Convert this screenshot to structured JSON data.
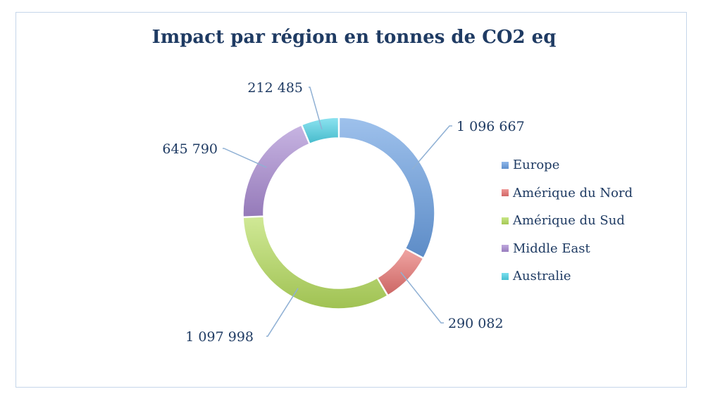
{
  "chart_data": {
    "type": "pie",
    "variant": "doughnut",
    "title": "Impact par région en tonnes de CO2 eq",
    "categories": [
      "Europe",
      "Amérique du Nord",
      "Amérique du Sud",
      "Middle East",
      "Australie"
    ],
    "values": [
      1096667,
      290082,
      1097998,
      645790,
      212485
    ],
    "value_labels": [
      "1 096 667",
      "290 082",
      "1 097 998",
      "645 790",
      "212 485"
    ],
    "colors": [
      "#6a9fe2",
      "#e87472",
      "#b6dd5e",
      "#a98bd2",
      "#4fd4e8"
    ],
    "legend_placement": "right"
  }
}
